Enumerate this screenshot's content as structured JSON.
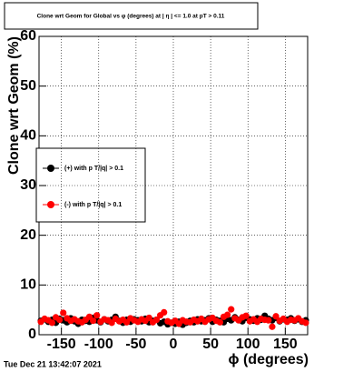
{
  "chart_data": {
    "type": "scatter",
    "title": "Clone wrt Geom for Global vs φ (degrees) at | η | <= 1.0 at pT > 0.11",
    "x_label": "ϕ (degrees)",
    "y_label": "Clone wrt Geom (%)",
    "timestamp": "Tue Dec 21 13:42:07 2021",
    "x": [
      -177.5,
      -172.5,
      -167.5,
      -162.5,
      -157.5,
      -152.5,
      -147.5,
      -142.5,
      -137.5,
      -132.5,
      -127.5,
      -122.5,
      -117.5,
      -112.5,
      -107.5,
      -102.5,
      -97.5,
      -92.5,
      -87.5,
      -82.5,
      -77.5,
      -72.5,
      -67.5,
      -62.5,
      -57.5,
      -52.5,
      -47.5,
      -42.5,
      -37.5,
      -32.5,
      -27.5,
      -22.5,
      -17.5,
      -12.5,
      -7.5,
      -2.5,
      2.5,
      7.5,
      12.5,
      17.5,
      22.5,
      27.5,
      32.5,
      37.5,
      42.5,
      47.5,
      52.5,
      57.5,
      62.5,
      67.5,
      72.5,
      77.5,
      82.5,
      87.5,
      92.5,
      97.5,
      102.5,
      107.5,
      112.5,
      117.5,
      122.5,
      127.5,
      132.5,
      137.5,
      142.5,
      147.5,
      152.5,
      157.5,
      162.5,
      167.5,
      172.5,
      177.5
    ],
    "series": [
      {
        "name": "(+) with p T/|q| > 0.1",
        "color": "#000000",
        "values": [
          2.8,
          3.1,
          2.6,
          3.0,
          2.4,
          3.2,
          2.9,
          2.5,
          3.3,
          2.7,
          2.2,
          3.0,
          2.8,
          2.6,
          3.4,
          2.9,
          2.5,
          3.1,
          2.7,
          3.0,
          3.6,
          2.8,
          2.4,
          3.0,
          2.6,
          3.1,
          2.9,
          2.7,
          3.2,
          2.5,
          2.8,
          3.0,
          2.3,
          2.6,
          2.1,
          2.4,
          2.2,
          2.6,
          2.0,
          2.4,
          2.8,
          2.5,
          3.1,
          2.7,
          2.9,
          3.3,
          2.6,
          3.0,
          2.8,
          2.5,
          3.2,
          2.9,
          3.5,
          3.0,
          2.7,
          3.4,
          3.1,
          2.8,
          3.3,
          3.0,
          3.8,
          3.2,
          2.9,
          3.4,
          2.7,
          3.1,
          3.0,
          3.3,
          2.8,
          3.1,
          2.6,
          2.9
        ]
      },
      {
        "name": "(-) with p T/|q| > 0.1",
        "color": "#ff0000",
        "values": [
          2.6,
          3.2,
          2.9,
          2.4,
          3.5,
          3.0,
          4.4,
          3.3,
          2.8,
          3.1,
          2.7,
          2.5,
          3.0,
          3.6,
          2.8,
          3.9,
          2.6,
          3.1,
          2.9,
          2.4,
          3.2,
          2.7,
          3.0,
          2.5,
          3.3,
          2.9,
          2.6,
          3.1,
          2.8,
          3.4,
          2.5,
          3.0,
          3.9,
          4.5,
          2.7,
          2.4,
          2.8,
          2.2,
          2.9,
          2.6,
          2.5,
          3.0,
          2.7,
          3.2,
          2.6,
          3.1,
          3.4,
          2.8,
          2.5,
          3.6,
          4.0,
          5.1,
          3.3,
          2.9,
          3.5,
          3.8,
          2.7,
          3.1,
          2.6,
          3.2,
          3.0,
          2.9,
          1.6,
          3.7,
          2.8,
          3.2,
          2.6,
          3.0,
          2.9,
          3.3,
          2.7,
          2.4
        ]
      }
    ],
    "xlim": [
      -180,
      180
    ],
    "ylim": [
      0,
      60
    ],
    "xticks": [
      -150,
      -100,
      -50,
      0,
      50,
      100,
      150
    ],
    "yticks": [
      0,
      10,
      20,
      30,
      40,
      50,
      60
    ],
    "grid": true
  }
}
